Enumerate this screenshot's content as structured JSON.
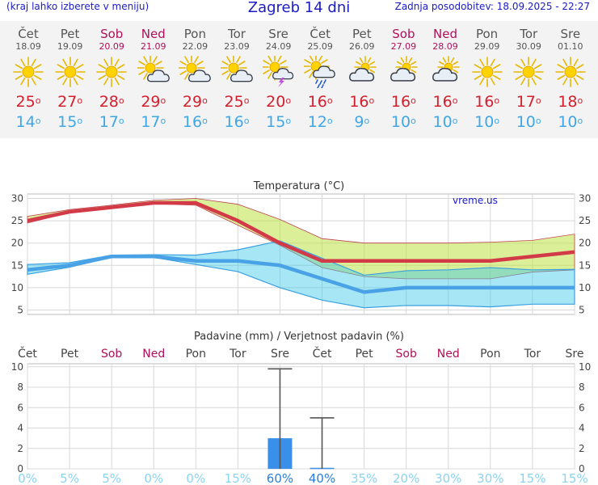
{
  "header": {
    "note": "(kraj lahko izberete v meniju)",
    "title": "Zagreb 14 dni",
    "updated": "Zadnja posodobitev: 18.09.2025 - 22:27"
  },
  "colors": {
    "max": "#d23a48",
    "min": "#4aa2e6",
    "weekend": "#b0105a",
    "precip_bar": "#3a8fe8"
  },
  "days": [
    {
      "name": "Čet",
      "date": "18.09",
      "weekend": false,
      "icon": "sun-icon",
      "tmax": "25",
      "tmin": "14"
    },
    {
      "name": "Pet",
      "date": "19.09",
      "weekend": false,
      "icon": "sun-icon",
      "tmax": "27",
      "tmin": "15"
    },
    {
      "name": "Sob",
      "date": "20.09",
      "weekend": true,
      "icon": "sun-icon",
      "tmax": "28",
      "tmin": "17"
    },
    {
      "name": "Ned",
      "date": "21.09",
      "weekend": true,
      "icon": "sun-cloud-icon",
      "tmax": "29",
      "tmin": "17"
    },
    {
      "name": "Pon",
      "date": "22.09",
      "weekend": false,
      "icon": "sun-cloud-icon",
      "tmax": "29",
      "tmin": "16"
    },
    {
      "name": "Tor",
      "date": "23.09",
      "weekend": false,
      "icon": "sun-cloud-icon",
      "tmax": "25",
      "tmin": "16"
    },
    {
      "name": "Sre",
      "date": "24.09",
      "weekend": false,
      "icon": "sun-cloud-storm-icon",
      "tmax": "20",
      "tmin": "15"
    },
    {
      "name": "Čet",
      "date": "25.09",
      "weekend": false,
      "icon": "sun-cloud-rain-icon",
      "tmax": "16",
      "tmin": "12"
    },
    {
      "name": "Pet",
      "date": "26.09",
      "weekend": false,
      "icon": "cloud-sun-icon",
      "tmax": "16",
      "tmin": "9"
    },
    {
      "name": "Sob",
      "date": "27.09",
      "weekend": true,
      "icon": "cloud-sun-icon",
      "tmax": "16",
      "tmin": "10"
    },
    {
      "name": "Ned",
      "date": "28.09",
      "weekend": true,
      "icon": "cloud-sun-icon",
      "tmax": "16",
      "tmin": "10"
    },
    {
      "name": "Pon",
      "date": "29.09",
      "weekend": false,
      "icon": "sun-icon",
      "tmax": "16",
      "tmin": "10"
    },
    {
      "name": "Tor",
      "date": "30.09",
      "weekend": false,
      "icon": "sun-icon",
      "tmax": "17",
      "tmin": "10"
    },
    {
      "name": "Sre",
      "date": "01.10",
      "weekend": false,
      "icon": "sun-icon",
      "tmax": "18",
      "tmin": "10"
    }
  ],
  "chart_data": [
    {
      "type": "line",
      "title": "Temperatura (°C)",
      "watermark": "vreme.us",
      "categories": [
        "Čet",
        "Pet",
        "Sob",
        "Ned",
        "Pon",
        "Tor",
        "Sre",
        "Čet",
        "Pet",
        "Sob",
        "Ned",
        "Pon",
        "Tor",
        "Sre"
      ],
      "ylim": [
        4,
        31
      ],
      "yticks": [
        5,
        10,
        15,
        20,
        25,
        30
      ],
      "series": [
        {
          "role": "max",
          "values": [
            25,
            27,
            28,
            29,
            29,
            25,
            20,
            16,
            16,
            16,
            16,
            16,
            17,
            18
          ]
        },
        {
          "role": "min",
          "values": [
            14,
            15,
            17,
            17,
            16,
            16,
            15,
            12,
            9,
            10,
            10,
            10,
            10,
            10
          ]
        },
        {
          "role": "max_range_upper",
          "values": [
            26,
            27.5,
            28.5,
            29.6,
            30,
            28.7,
            25.3,
            21,
            20,
            20,
            20,
            20.2,
            20.6,
            22
          ]
        },
        {
          "role": "max_range_lower",
          "values": [
            24.5,
            26.8,
            27.8,
            28.8,
            28.5,
            24,
            19.5,
            14.5,
            12.5,
            12,
            12,
            12,
            13.5,
            14
          ]
        },
        {
          "role": "min_range_upper",
          "values": [
            15.2,
            15.6,
            17.3,
            17.4,
            17.3,
            18.5,
            20.5,
            16.6,
            12.8,
            13.8,
            14,
            14.5,
            14,
            14.1
          ]
        },
        {
          "role": "min_range_lower",
          "values": [
            13,
            14.6,
            16.8,
            16.8,
            15.2,
            13.6,
            10,
            7.2,
            5.5,
            6,
            6,
            5.7,
            6.3,
            6.3
          ]
        }
      ],
      "grid": true
    },
    {
      "type": "bar",
      "title": "Padavine (mm) / Verjetnost padavin (%)",
      "categories": [
        "Čet",
        "Pet",
        "Sob",
        "Ned",
        "Pon",
        "Tor",
        "Sre",
        "Čet",
        "Pet",
        "Sob",
        "Ned",
        "Pon",
        "Tor",
        "Sre"
      ],
      "ylim": [
        0,
        10.3
      ],
      "yticks": [
        0,
        2,
        4,
        6,
        8,
        10
      ],
      "values": [
        0,
        0,
        0,
        0,
        0,
        0,
        3,
        0.1,
        0,
        0,
        0,
        0,
        0,
        0
      ],
      "error_upper": [
        0,
        0,
        0,
        0,
        0,
        0,
        9.8,
        5,
        0,
        0,
        0,
        0,
        0,
        0
      ],
      "probability": [
        "0%",
        "5%",
        "5%",
        "0%",
        "0%",
        "15%",
        "60%",
        "40%",
        "35%",
        "20%",
        "30%",
        "30%",
        "15%",
        "15%"
      ],
      "grid": true
    }
  ]
}
